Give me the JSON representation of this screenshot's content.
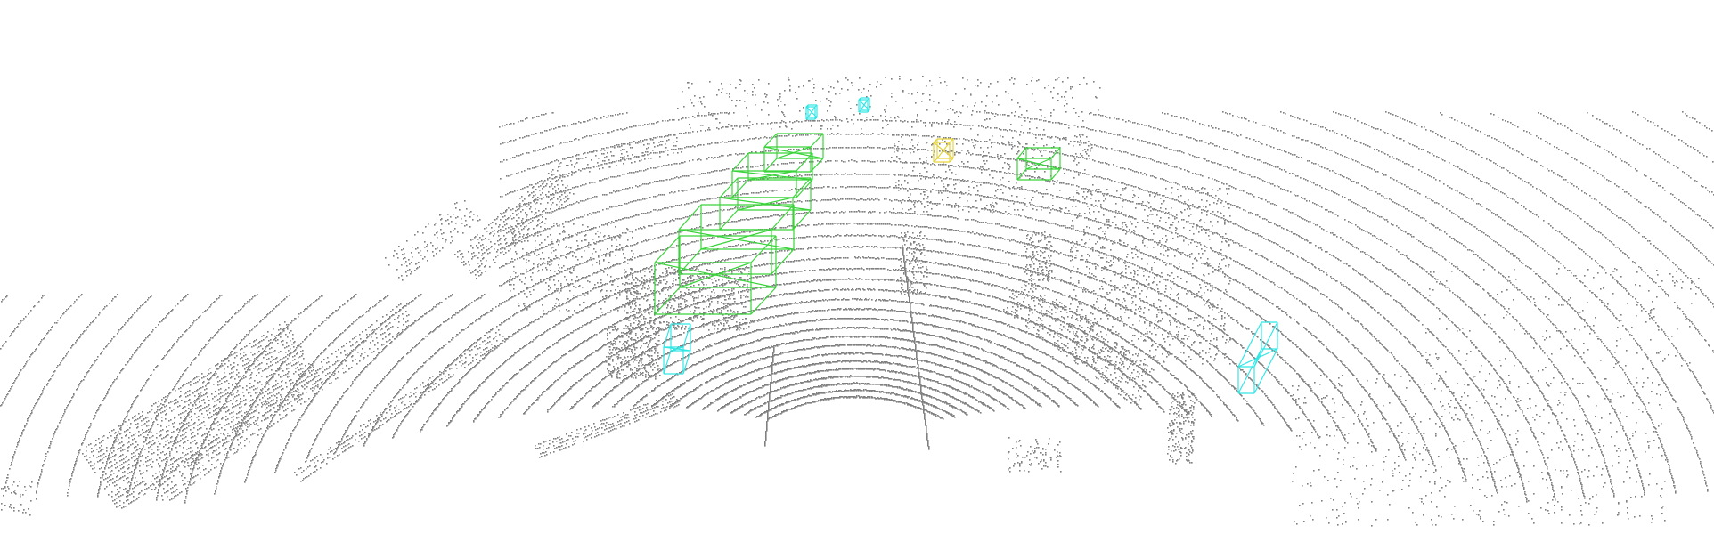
{
  "scene": {
    "background": "#ffffff",
    "point_color": "#808080",
    "category_colors": {
      "car": "#3ad43a",
      "pedestrian": "#33e6e6",
      "cyclist": "#e6d43a"
    },
    "objects": [
      {
        "category": "car"
      },
      {
        "category": "car"
      },
      {
        "category": "car"
      },
      {
        "category": "car"
      },
      {
        "category": "car"
      },
      {
        "category": "car"
      },
      {
        "category": "pedestrian"
      },
      {
        "category": "pedestrian"
      },
      {
        "category": "pedestrian"
      },
      {
        "category": "pedestrian"
      },
      {
        "category": "cyclist"
      }
    ]
  }
}
